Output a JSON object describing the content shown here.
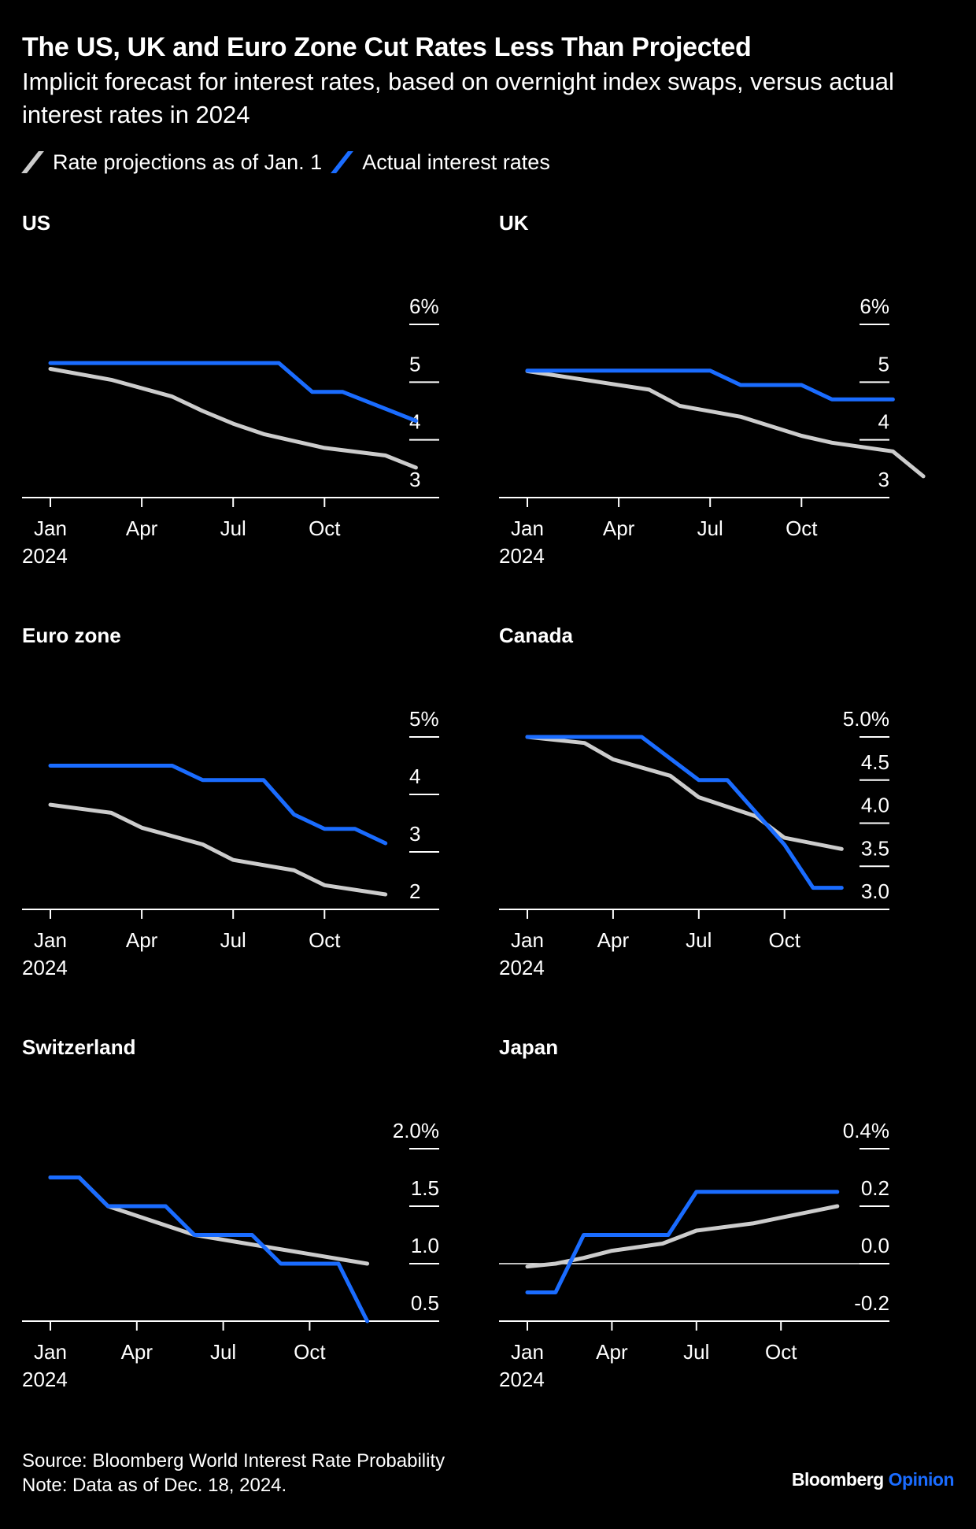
{
  "title": "The US, UK and Euro Zone Cut Rates Less Than Projected",
  "subtitle": "Implicit forecast for interest rates, based on overnight index swaps, versus actual interest rates in 2024",
  "legend": [
    {
      "label": "Rate projections as of Jan. 1",
      "color": "#cccccc"
    },
    {
      "label": "Actual interest rates",
      "color": "#1a6cff"
    }
  ],
  "footer": {
    "source": "Source: Bloomberg World Interest Rate Probability",
    "note": "Note: Data as of Dec. 18, 2024."
  },
  "brand": {
    "name": "Bloomberg",
    "suffix": "Opinion"
  },
  "colors": {
    "projection": "#cccccc",
    "actual": "#1a6cff",
    "background": "#000000",
    "axis": "#ffffff"
  },
  "chart_data": [
    {
      "type": "line",
      "title": "US",
      "x_ticks": [
        "Jan",
        "Apr",
        "Jul",
        "Oct"
      ],
      "x_year": "2024",
      "xlim": [
        0,
        12
      ],
      "ylim": [
        3,
        6
      ],
      "y_ticks": [
        {
          "value": 6,
          "label": "6%"
        },
        {
          "value": 5,
          "label": "5"
        },
        {
          "value": 4,
          "label": "4"
        },
        {
          "value": 3,
          "label": "3"
        }
      ],
      "series": [
        {
          "name": "Rate projections as of Jan. 1",
          "x": [
            0,
            2,
            4,
            5,
            6,
            7,
            9,
            11,
            12
          ],
          "y": [
            5.23,
            5.04,
            4.75,
            4.5,
            4.28,
            4.1,
            3.86,
            3.73,
            3.52
          ]
        },
        {
          "name": "Actual interest rates",
          "x": [
            0,
            7.5,
            8.6,
            9.6,
            12
          ],
          "y": [
            5.33,
            5.33,
            4.83,
            4.83,
            4.33
          ]
        }
      ]
    },
    {
      "type": "line",
      "title": "UK",
      "x_ticks": [
        "Jan",
        "Apr",
        "Jul",
        "Oct"
      ],
      "x_year": "2024",
      "xlim": [
        0,
        12
      ],
      "ylim": [
        3,
        6
      ],
      "y_ticks": [
        {
          "value": 6,
          "label": "6%"
        },
        {
          "value": 5,
          "label": "5"
        },
        {
          "value": 4,
          "label": "4"
        },
        {
          "value": 3,
          "label": "3"
        }
      ],
      "series": [
        {
          "name": "Rate projections as of Jan. 1",
          "x": [
            0,
            4,
            5,
            7,
            9,
            10,
            12,
            13
          ],
          "y": [
            5.19,
            4.87,
            4.59,
            4.4,
            4.07,
            3.95,
            3.8,
            3.37
          ]
        },
        {
          "name": "Actual interest rates",
          "x": [
            0,
            6,
            7,
            9,
            10,
            11,
            12
          ],
          "y": [
            5.2,
            5.2,
            4.95,
            4.95,
            4.7,
            4.7,
            4.7
          ]
        }
      ]
    },
    {
      "type": "line",
      "title": "Euro zone",
      "x_ticks": [
        "Jan",
        "Apr",
        "Jul",
        "Oct"
      ],
      "x_year": "2024",
      "xlim": [
        0,
        12
      ],
      "ylim": [
        2,
        5
      ],
      "y_ticks": [
        {
          "value": 5,
          "label": "5%"
        },
        {
          "value": 4,
          "label": "4"
        },
        {
          "value": 3,
          "label": "3"
        },
        {
          "value": 2,
          "label": "2"
        }
      ],
      "series": [
        {
          "name": "Rate projections as of Jan. 1",
          "x": [
            0,
            2,
            3,
            5,
            6,
            8,
            9,
            11
          ],
          "y": [
            3.82,
            3.68,
            3.42,
            3.13,
            2.86,
            2.68,
            2.42,
            2.26
          ]
        },
        {
          "name": "Actual interest rates",
          "x": [
            0,
            4,
            5,
            7,
            8,
            9,
            10,
            11
          ],
          "y": [
            4.5,
            4.5,
            4.25,
            4.25,
            3.65,
            3.4,
            3.4,
            3.15
          ]
        }
      ]
    },
    {
      "type": "line",
      "title": "Canada",
      "x_ticks": [
        "Jan",
        "Apr",
        "Jul",
        "Oct"
      ],
      "x_year": "2024",
      "xlim": [
        0,
        12
      ],
      "ylim": [
        2.8,
        5
      ],
      "y_ticks": [
        {
          "value": 5,
          "label": "5.0%"
        },
        {
          "value": 4.5,
          "label": "4.5"
        },
        {
          "value": 4,
          "label": "4.0"
        },
        {
          "value": 3.5,
          "label": "3.5"
        },
        {
          "value": 3,
          "label": "3.0"
        }
      ],
      "series": [
        {
          "name": "Rate projections as of Jan. 1",
          "x": [
            0,
            2,
            3,
            5,
            6,
            8,
            9,
            11
          ],
          "y": [
            5.0,
            4.93,
            4.74,
            4.55,
            4.3,
            4.08,
            3.83,
            3.7
          ]
        },
        {
          "name": "Actual interest rates",
          "x": [
            0,
            4,
            5,
            6,
            7,
            9,
            10,
            11
          ],
          "y": [
            5.0,
            5.0,
            4.75,
            4.5,
            4.5,
            3.75,
            3.25,
            3.25
          ]
        }
      ]
    },
    {
      "type": "line",
      "title": "Switzerland",
      "x_ticks": [
        "Jan",
        "Apr",
        "Jul",
        "Oct"
      ],
      "x_year": "2024",
      "xlim": [
        0,
        12
      ],
      "ylim": [
        0.5,
        2
      ],
      "y_ticks": [
        {
          "value": 2,
          "label": "2.0%"
        },
        {
          "value": 1.5,
          "label": "1.5"
        },
        {
          "value": 1,
          "label": "1.0"
        },
        {
          "value": 0.5,
          "label": "0.5"
        }
      ],
      "series": [
        {
          "name": "Rate projections as of Jan. 1",
          "x": [
            0,
            1,
            2,
            5,
            11
          ],
          "y": [
            1.75,
            1.75,
            1.5,
            1.25,
            1.0
          ]
        },
        {
          "name": "Actual interest rates",
          "x": [
            0,
            1,
            2,
            4,
            5,
            7,
            8,
            10,
            11
          ],
          "y": [
            1.75,
            1.75,
            1.5,
            1.5,
            1.25,
            1.25,
            1.0,
            1.0,
            0.5
          ]
        }
      ]
    },
    {
      "type": "line",
      "title": "Japan",
      "x_ticks": [
        "Jan",
        "Apr",
        "Jul",
        "Oct"
      ],
      "x_year": "2024",
      "xlim": [
        0,
        12
      ],
      "ylim": [
        -0.2,
        0.4
      ],
      "y_ticks": [
        {
          "value": 0.4,
          "label": "0.4%"
        },
        {
          "value": 0.2,
          "label": "0.2"
        },
        {
          "value": 0,
          "label": "0.0"
        },
        {
          "value": -0.2,
          "label": "-0.2"
        }
      ],
      "series": [
        {
          "name": "Rate projections as of Jan. 1",
          "x": [
            0,
            1,
            2,
            3,
            4.8,
            6,
            8,
            9,
            11
          ],
          "y": [
            -0.01,
            0.0,
            0.02,
            0.045,
            0.07,
            0.115,
            0.14,
            0.16,
            0.2
          ]
        },
        {
          "name": "Actual interest rates",
          "x": [
            0,
            1,
            2,
            5,
            6,
            11
          ],
          "y": [
            -0.1,
            -0.1,
            0.1,
            0.1,
            0.25,
            0.25
          ]
        }
      ]
    }
  ]
}
